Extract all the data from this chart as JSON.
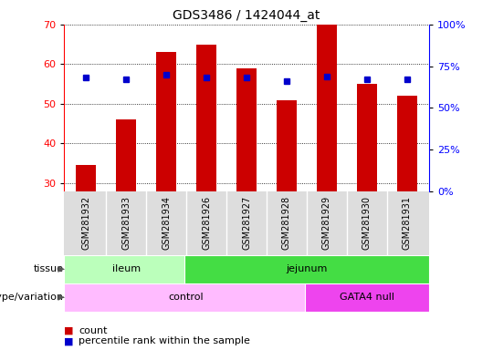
{
  "title": "GDS3486 / 1424044_at",
  "samples": [
    "GSM281932",
    "GSM281933",
    "GSM281934",
    "GSM281926",
    "GSM281927",
    "GSM281928",
    "GSM281929",
    "GSM281930",
    "GSM281931"
  ],
  "counts": [
    34.5,
    46.0,
    63.0,
    65.0,
    59.0,
    51.0,
    70.0,
    55.0,
    52.0
  ],
  "percentile_ranks": [
    68,
    67,
    70,
    68,
    68,
    66,
    69,
    67,
    67
  ],
  "bar_bottom": 28,
  "ylim_left": [
    28,
    70
  ],
  "ylim_right": [
    0,
    100
  ],
  "yticks_left": [
    30,
    40,
    50,
    60,
    70
  ],
  "yticks_right": [
    0,
    25,
    50,
    75,
    100
  ],
  "bar_color": "#cc0000",
  "dot_color": "#0000cc",
  "tissue_groups": [
    {
      "label": "ileum",
      "start": 0,
      "end": 3,
      "color": "#bbffbb"
    },
    {
      "label": "jejunum",
      "start": 3,
      "end": 9,
      "color": "#44dd44"
    }
  ],
  "genotype_groups": [
    {
      "label": "control",
      "start": 0,
      "end": 6,
      "color": "#ffbbff"
    },
    {
      "label": "GATA4 null",
      "start": 6,
      "end": 9,
      "color": "#ee44ee"
    }
  ],
  "tissue_label": "tissue",
  "genotype_label": "genotype/variation",
  "legend_count": "count",
  "legend_percentile": "percentile rank within the sample",
  "bar_width": 0.5,
  "xlim": [
    -0.55,
    8.55
  ]
}
